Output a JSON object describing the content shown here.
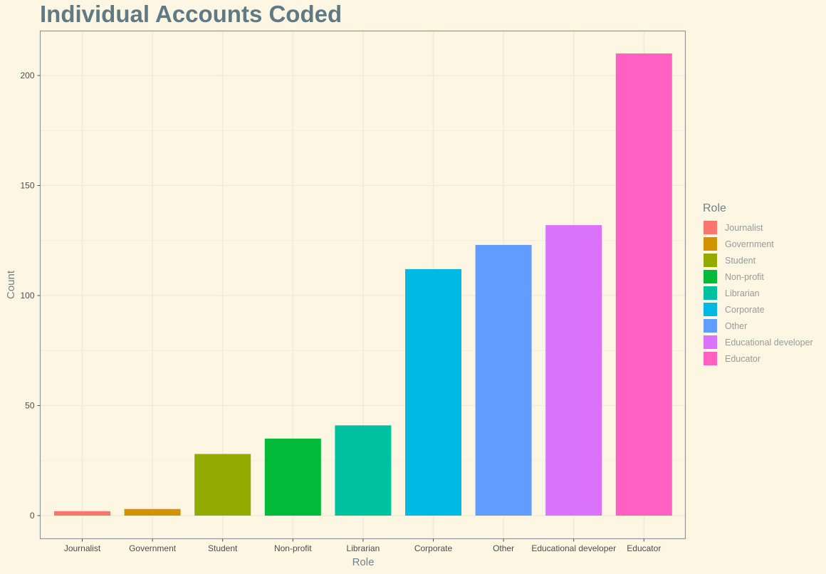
{
  "title": "Individual Accounts Coded",
  "chart_data": {
    "type": "bar",
    "title": "Individual Accounts Coded",
    "xlabel": "Role",
    "ylabel": "Count",
    "ylim": [
      0,
      220
    ],
    "yticks": [
      0,
      50,
      100,
      150,
      200
    ],
    "grid": true,
    "legend_title": "Role",
    "legend_position": "right",
    "categories": [
      "Journalist",
      "Government",
      "Student",
      "Non-profit",
      "Librarian",
      "Corporate",
      "Other",
      "Educational developer",
      "Educator"
    ],
    "values": [
      2,
      3,
      28,
      35,
      41,
      112,
      123,
      132,
      210
    ],
    "colors": [
      "#f8766d",
      "#d39200",
      "#93aa00",
      "#00ba38",
      "#00c19f",
      "#00b9e3",
      "#619cff",
      "#db72fb",
      "#ff61c3"
    ]
  },
  "colors": {
    "background": "#fdf6e3",
    "grid": "#f2ebdc",
    "panel_border": "#8c9a9e",
    "title": "#5f7a84"
  }
}
